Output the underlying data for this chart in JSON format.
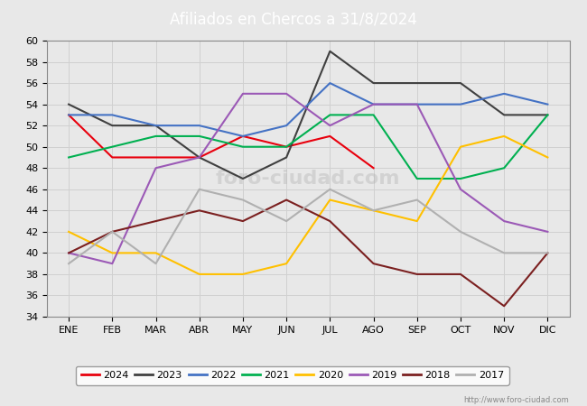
{
  "title": "Afiliados en Chercos a 31/8/2024",
  "months": [
    "ENE",
    "FEB",
    "MAR",
    "ABR",
    "MAY",
    "JUN",
    "JUL",
    "AGO",
    "SEP",
    "OCT",
    "NOV",
    "DIC"
  ],
  "series": {
    "2024": {
      "color": "#e8000d",
      "data": [
        53,
        49,
        49,
        49,
        51,
        50,
        51,
        48,
        null,
        null,
        null,
        null
      ]
    },
    "2023": {
      "color": "#404040",
      "data": [
        54,
        52,
        52,
        49,
        47,
        49,
        59,
        56,
        56,
        56,
        53,
        53
      ]
    },
    "2022": {
      "color": "#4472c4",
      "data": [
        53,
        53,
        52,
        52,
        51,
        52,
        56,
        54,
        54,
        54,
        55,
        54
      ]
    },
    "2021": {
      "color": "#00b050",
      "data": [
        49,
        50,
        51,
        51,
        50,
        50,
        53,
        53,
        47,
        47,
        48,
        53
      ]
    },
    "2020": {
      "color": "#ffc000",
      "data": [
        42,
        40,
        40,
        38,
        38,
        39,
        45,
        44,
        43,
        50,
        51,
        49
      ]
    },
    "2019": {
      "color": "#9b59b6",
      "data": [
        40,
        39,
        48,
        49,
        55,
        55,
        52,
        54,
        54,
        46,
        43,
        42
      ]
    },
    "2018": {
      "color": "#7b2020",
      "data": [
        40,
        42,
        43,
        44,
        43,
        45,
        43,
        39,
        38,
        38,
        35,
        40
      ]
    },
    "2017": {
      "color": "#b0b0b0",
      "data": [
        39,
        42,
        39,
        46,
        45,
        43,
        46,
        44,
        45,
        42,
        40,
        40
      ]
    }
  },
  "ylim": [
    34,
    60
  ],
  "yticks": [
    34,
    36,
    38,
    40,
    42,
    44,
    46,
    48,
    50,
    52,
    54,
    56,
    58,
    60
  ],
  "grid_color": "#d0d0d0",
  "plot_bg_color": "#e8e8e8",
  "fig_bg_color": "#e8e8e8",
  "title_bg_color": "#4472c4",
  "title_text_color": "#ffffff",
  "url": "http://www.foro-ciudad.com",
  "legend_order": [
    "2024",
    "2023",
    "2022",
    "2021",
    "2020",
    "2019",
    "2018",
    "2017"
  ]
}
